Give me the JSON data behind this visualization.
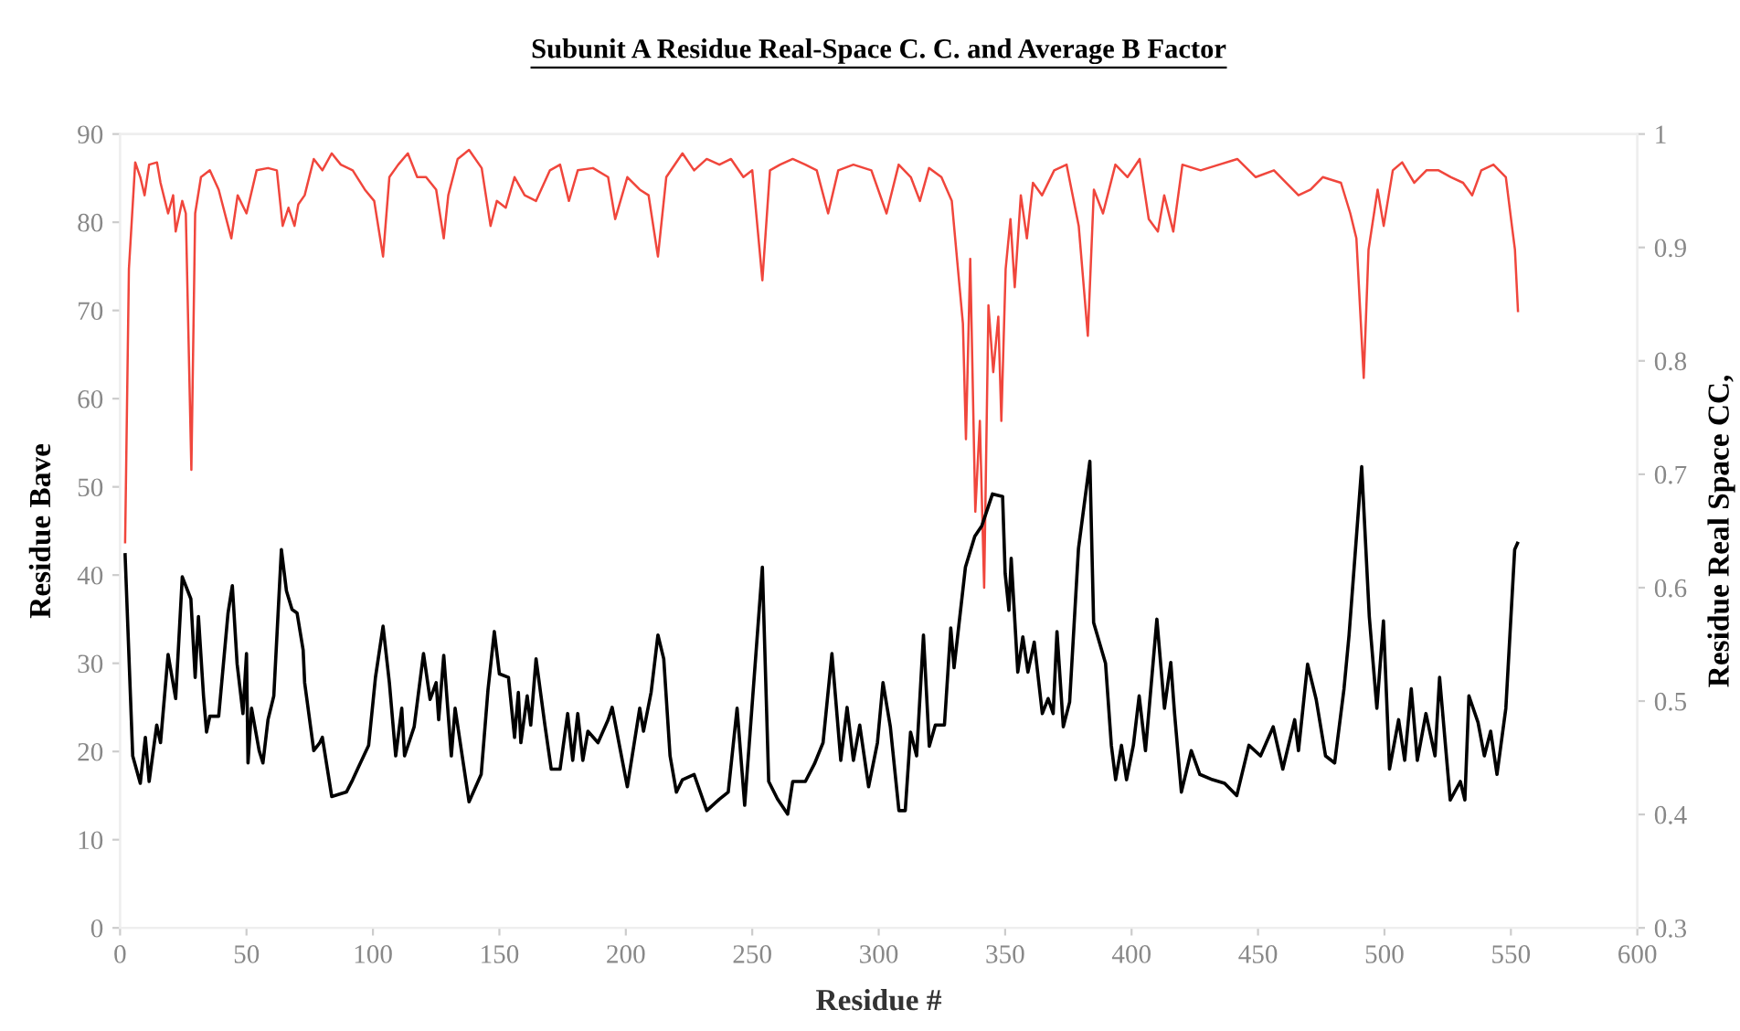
{
  "chart_data": {
    "type": "line",
    "title": "Subunit A Residue Real-Space C. C. and Average B Factor",
    "xlabel": "Residue #",
    "ylabel": "Residue Bave",
    "y2label": "Residue Real Space CC,",
    "xlim": [
      0,
      600
    ],
    "xticks": [
      0,
      50,
      100,
      150,
      200,
      250,
      300,
      350,
      400,
      450,
      500,
      550,
      600
    ],
    "ylim": [
      0,
      90
    ],
    "yticks": [
      0,
      10,
      20,
      30,
      40,
      50,
      60,
      70,
      80,
      90
    ],
    "y2lim": [
      0.3,
      1
    ],
    "y2ticks": [
      0.3,
      0.4,
      0.5,
      0.6,
      0.7,
      0.8,
      0.9,
      1
    ],
    "grid": false,
    "legend": false,
    "marker": "none",
    "line_style": "solid",
    "series": [
      {
        "color": "#f0463c",
        "axis": "y2",
        "x": [
          2,
          3.5,
          6,
          8,
          9.7,
          11.5,
          14.6,
          16,
          19,
          21,
          22,
          24.6,
          26,
          28.2,
          29.7,
          32,
          35.5,
          39,
          44,
          46.5,
          50,
          54,
          58.5,
          62,
          64.3,
          66.6,
          69,
          70.5,
          73,
          76.6,
          80,
          83.7,
          87.3,
          92,
          96.8,
          100.5,
          104,
          106.5,
          110,
          113.8,
          117.5,
          121,
          125,
          128,
          129.8,
          133.5,
          138,
          143,
          146.5,
          149,
          152.5,
          156,
          160,
          164.5,
          170,
          174,
          177.5,
          181,
          187,
          193,
          195.8,
          200.6,
          205.5,
          209,
          212.7,
          216,
          222.4,
          227,
          232,
          237,
          241.6,
          246.5,
          250,
          254,
          257,
          261,
          266,
          271,
          275.5,
          280,
          284,
          290,
          297.1,
          303.1,
          307.9,
          312.7,
          316.3,
          319.9,
          324.8,
          328.9,
          331.5,
          333.3,
          334.5,
          336.2,
          338.2,
          340,
          341.7,
          343.4,
          345.3,
          347.3,
          348.5,
          350.2,
          352.1,
          353.8,
          356.2,
          358.6,
          361,
          364.6,
          369.4,
          374.3,
          379.1,
          382.7,
          385.1,
          388.7,
          393.6,
          398.4,
          403.2,
          406.8,
          410.4,
          412.9,
          416.5,
          420.1,
          427.3,
          434.6,
          441.8,
          449.1,
          456.3,
          461.1,
          466,
          470.8,
          475.6,
          482.8,
          486.5,
          488.9,
          491.8,
          493.7,
          497.3,
          499.7,
          503.3,
          507,
          511.8,
          516.6,
          521.4,
          526.3,
          531.1,
          534.7,
          538.3,
          543.1,
          548,
          550.4,
          551.6,
          552.8
        ],
        "values": [
          0.64,
          0.881,
          0.975,
          0.962,
          0.946,
          0.973,
          0.975,
          0.957,
          0.93,
          0.946,
          0.914,
          0.941,
          0.93,
          0.704,
          0.93,
          0.962,
          0.968,
          0.951,
          0.908,
          0.946,
          0.93,
          0.968,
          0.97,
          0.968,
          0.919,
          0.935,
          0.919,
          0.938,
          0.946,
          0.978,
          0.968,
          0.983,
          0.973,
          0.968,
          0.951,
          0.941,
          0.892,
          0.962,
          0.973,
          0.983,
          0.962,
          0.962,
          0.951,
          0.908,
          0.946,
          0.978,
          0.986,
          0.97,
          0.919,
          0.941,
          0.935,
          0.962,
          0.946,
          0.941,
          0.968,
          0.973,
          0.941,
          0.968,
          0.97,
          0.962,
          0.925,
          0.962,
          0.951,
          0.946,
          0.892,
          0.962,
          0.983,
          0.968,
          0.978,
          0.973,
          0.978,
          0.962,
          0.968,
          0.871,
          0.968,
          0.973,
          0.978,
          0.973,
          0.968,
          0.93,
          0.968,
          0.973,
          0.968,
          0.93,
          0.973,
          0.962,
          0.941,
          0.97,
          0.962,
          0.941,
          0.877,
          0.833,
          0.731,
          0.89,
          0.667,
          0.747,
          0.6,
          0.849,
          0.79,
          0.839,
          0.747,
          0.881,
          0.925,
          0.865,
          0.946,
          0.908,
          0.957,
          0.946,
          0.968,
          0.973,
          0.919,
          0.822,
          0.951,
          0.93,
          0.973,
          0.962,
          0.978,
          0.925,
          0.914,
          0.946,
          0.914,
          0.973,
          0.968,
          0.973,
          0.978,
          0.962,
          0.968,
          0.957,
          0.946,
          0.951,
          0.962,
          0.957,
          0.93,
          0.908,
          0.785,
          0.898,
          0.951,
          0.919,
          0.968,
          0.975,
          0.957,
          0.968,
          0.968,
          0.962,
          0.957,
          0.946,
          0.968,
          0.973,
          0.962,
          0.919,
          0.898,
          0.844
        ]
      },
      {
        "color": "#000000",
        "x": [
          2,
          5,
          8,
          10,
          11.5,
          14.5,
          16,
          19,
          22,
          24.6,
          28,
          29.7,
          31,
          33,
          34.2,
          35.5,
          39,
          42.7,
          44.4,
          46.3,
          48.6,
          50,
          50.6,
          52,
          55,
          56.5,
          58.5,
          60.8,
          63.8,
          65.8,
          68,
          70,
          72.4,
          73,
          76.6,
          79,
          80,
          83.7,
          89.5,
          92,
          94.7,
          98.3,
          101,
          104,
          106.5,
          109,
          111.4,
          112.5,
          116.3,
          120,
          122.6,
          125,
          126,
          128,
          131,
          132.5,
          138,
          142.8,
          145.5,
          148,
          150,
          153.6,
          156,
          157.5,
          158.5,
          161,
          162.4,
          164.5,
          168,
          170.5,
          174,
          177,
          179,
          181,
          183,
          185,
          189,
          193,
          194.6,
          200.6,
          205.5,
          207,
          210,
          212.7,
          215,
          217.5,
          220,
          222.4,
          227,
          232,
          237,
          240.5,
          244,
          247,
          254,
          256.5,
          260,
          264,
          266,
          271,
          274.6,
          278,
          281.5,
          285,
          287.5,
          290,
          292.5,
          296,
          299.5,
          301.7,
          304.6,
          308,
          310.5,
          312.6,
          315,
          317.7,
          320,
          322.4,
          326,
          328.5,
          329.8,
          334.3,
          338,
          340.8,
          345,
          349,
          350,
          351.5,
          352.4,
          355,
          357,
          359,
          361.5,
          364.7,
          367,
          369,
          370.5,
          373,
          375.5,
          379,
          383.5,
          385,
          389.7,
          392,
          393.7,
          396,
          398,
          400.7,
          403,
          405.5,
          410,
          413,
          415.5,
          417,
          419.7,
          423.6,
          427,
          432,
          436.8,
          441.6,
          446.4,
          451,
          456,
          459.8,
          464.5,
          466,
          469.6,
          473,
          476.7,
          480.3,
          484,
          486,
          491,
          494,
          497,
          499.6,
          502,
          505.6,
          508,
          510.6,
          513,
          516.4,
          520,
          521.8,
          526,
          530,
          531.8,
          533.4,
          537,
          539.5,
          542,
          544.5,
          548,
          551.5,
          552.6
        ],
        "values": [
          42.3,
          19.5,
          16.4,
          21.6,
          16.6,
          23,
          21,
          31,
          26,
          39.8,
          37.3,
          28.4,
          35.3,
          26.3,
          22.2,
          24,
          24,
          35.7,
          38.8,
          29.9,
          24.3,
          31.1,
          18.7,
          24.9,
          20.1,
          18.7,
          23.6,
          26.3,
          42.9,
          38.2,
          36.1,
          35.7,
          31.5,
          27.8,
          20.1,
          21,
          21.6,
          14.9,
          15.4,
          16.8,
          18.5,
          20.7,
          28.4,
          34.2,
          27.8,
          19.5,
          24.9,
          19.5,
          22.8,
          31.1,
          25.9,
          27.8,
          23.6,
          30.9,
          19.5,
          24.9,
          14.3,
          17.4,
          27,
          33.6,
          28.8,
          28.4,
          21.6,
          26.7,
          21,
          26.3,
          23,
          30.5,
          23,
          18,
          18,
          24.3,
          19,
          24.3,
          19,
          22.3,
          21,
          23.6,
          25,
          16,
          24.9,
          22.3,
          26.7,
          33.2,
          30.5,
          19.5,
          15.4,
          16.8,
          17.4,
          13.3,
          14.6,
          15.4,
          24.9,
          13.9,
          40.9,
          16.6,
          14.6,
          12.9,
          16.6,
          16.6,
          18.6,
          21,
          31.1,
          19,
          25,
          19,
          23,
          16,
          21,
          27.8,
          22.8,
          13.3,
          13.3,
          22.2,
          19.5,
          33.2,
          20.6,
          23,
          23,
          34,
          29.5,
          40.9,
          44.4,
          45.6,
          49.2,
          48.9,
          40.2,
          36,
          41.9,
          29,
          33,
          29,
          32.4,
          24.3,
          26,
          24.3,
          33.6,
          22.8,
          25.6,
          43,
          52.9,
          34.6,
          30,
          20.7,
          16.8,
          20.7,
          16.8,
          20.7,
          26.3,
          20.1,
          35,
          24.9,
          30.1,
          24.3,
          15.4,
          20.1,
          17.4,
          16.8,
          16.4,
          15,
          20.7,
          19.5,
          22.8,
          18,
          23.6,
          20.1,
          29.9,
          25.9,
          19.5,
          18.7,
          27.1,
          33.2,
          52.3,
          35.3,
          24.9,
          34.8,
          18,
          23.6,
          19,
          27.1,
          19,
          24.3,
          19.5,
          28.4,
          14.5,
          16.6,
          14.5,
          26.3,
          23.3,
          19.5,
          22.3,
          17.4,
          24.9,
          42.9,
          43.6
        ]
      }
    ]
  }
}
